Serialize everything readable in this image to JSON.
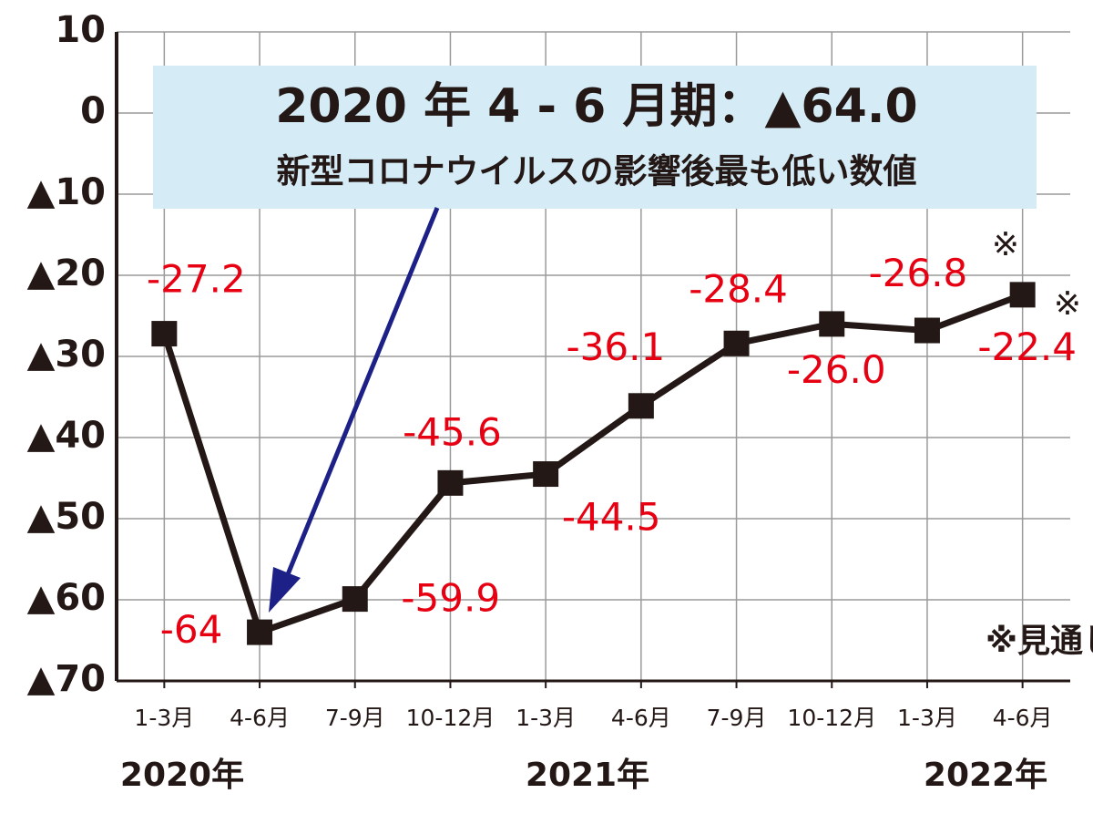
{
  "chart_data": {
    "type": "line",
    "annotation": {
      "title": "2020 年 4 ‐ 6 月期：▲64.0",
      "subtitle": "新型コロナウイルスの影響後最も低い数値"
    },
    "categories": [
      "1-3月",
      "4-6月",
      "7-9月",
      "10-12月",
      "1-3月",
      "4-6月",
      "7-9月",
      "10-12月",
      "1-3月",
      "4-6月"
    ],
    "years": [
      "2020年",
      "2021年",
      "2022年"
    ],
    "series": [
      {
        "color": "#231815",
        "values": [
          -27.2,
          -64,
          -59.9,
          -45.6,
          -44.5,
          -36.1,
          -28.4,
          -26.0,
          -26.8,
          -22.4
        ],
        "value_labels": [
          "-27.2",
          "-64",
          "-59.9",
          "-45.6",
          "-44.5",
          "-36.1",
          "-28.4",
          "-26.0",
          "-26.8",
          "-22.4"
        ]
      }
    ],
    "label_color": "#e60012",
    "forecast_mark": "※",
    "forecast_note": "※見通し",
    "ylim": [
      -70,
      10
    ],
    "yticks": [
      10,
      0,
      {
        "value": -10,
        "label": "▲10"
      },
      {
        "value": -20,
        "label": "▲20"
      },
      {
        "value": -30,
        "label": "▲30"
      },
      {
        "value": -40,
        "label": "▲40"
      },
      {
        "value": -50,
        "label": "▲50"
      },
      {
        "value": -60,
        "label": "▲60"
      },
      {
        "value": -70,
        "label": "▲70"
      }
    ],
    "grid": true
  }
}
